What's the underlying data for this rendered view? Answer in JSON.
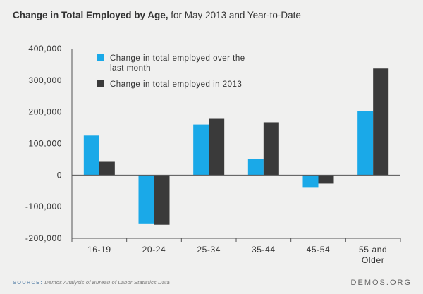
{
  "header": {
    "title_bold": "Change in Total Employed by Age,",
    "title_rest": " for May 2013 and Year-to-Date"
  },
  "footer": {
    "source_label": "SOURCE:",
    "source_text": "Dēmos Analysis of Bureau of Labor Statistics Data",
    "brand": "DEMOS.ORG"
  },
  "colors": {
    "series_month": "#1aa9e8",
    "series_year": "#3a3a3a",
    "background": "#f0f0ef"
  },
  "chart_data": {
    "type": "bar",
    "title": "Change in Total Employed by Age, for May 2013 and Year-to-Date",
    "xlabel": "",
    "ylabel": "",
    "categories": [
      [
        "16-19"
      ],
      [
        "20-24"
      ],
      [
        "25-34"
      ],
      [
        "35-44"
      ],
      [
        "45-54"
      ],
      [
        "55 and",
        "Older"
      ]
    ],
    "series": [
      {
        "name": "Change in total employed over the last month",
        "color": "#1aa9e8",
        "values": [
          125000,
          -155000,
          160000,
          52000,
          -38000,
          202000
        ]
      },
      {
        "name": "Change in total employed in 2013",
        "color": "#3a3a3a",
        "values": [
          42000,
          -157000,
          178000,
          167000,
          -27000,
          337000
        ]
      }
    ],
    "legend_lines": [
      [
        "Change in total employed over the",
        "last month"
      ],
      [
        "Change in total employed in 2013"
      ]
    ],
    "yticks": [
      "400,000",
      "300,000",
      "200,000",
      "100,000",
      "0",
      "-100,000",
      "-200,000"
    ],
    "ytick_values": [
      400000,
      300000,
      200000,
      100000,
      0,
      -100000,
      -200000
    ],
    "ylim": [
      -200000,
      400000
    ],
    "grid": false,
    "legend_position": "top-left"
  }
}
